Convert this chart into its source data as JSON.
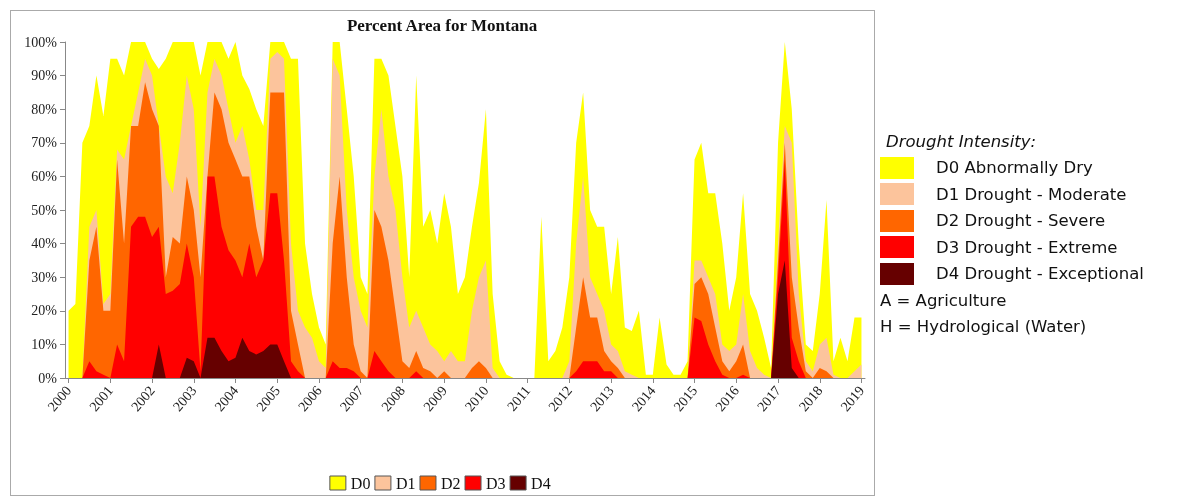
{
  "chart_data": {
    "type": "area",
    "title": "Percent Area for Montana",
    "x": [
      "2000-01",
      "2000-03",
      "2000-05",
      "2000-07",
      "2000-09",
      "2000-11",
      "2001-01",
      "2001-03",
      "2001-05",
      "2001-07",
      "2001-09",
      "2001-11",
      "2002-01",
      "2002-03",
      "2002-05",
      "2002-07",
      "2002-09",
      "2002-11",
      "2003-01",
      "2003-03",
      "2003-05",
      "2003-07",
      "2003-09",
      "2003-11",
      "2004-01",
      "2004-03",
      "2004-05",
      "2004-07",
      "2004-09",
      "2004-11",
      "2005-01",
      "2005-03",
      "2005-05",
      "2005-07",
      "2005-09",
      "2005-11",
      "2006-01",
      "2006-03",
      "2006-05",
      "2006-07",
      "2006-09",
      "2006-11",
      "2007-01",
      "2007-03",
      "2007-05",
      "2007-07",
      "2007-09",
      "2007-11",
      "2008-01",
      "2008-03",
      "2008-05",
      "2008-07",
      "2008-09",
      "2008-11",
      "2009-01",
      "2009-03",
      "2009-05",
      "2009-07",
      "2009-09",
      "2009-11",
      "2010-01",
      "2010-03",
      "2010-05",
      "2010-07",
      "2010-09",
      "2010-11",
      "2011-01",
      "2011-03",
      "2011-05",
      "2011-07",
      "2011-09",
      "2011-11",
      "2012-01",
      "2012-03",
      "2012-05",
      "2012-07",
      "2012-09",
      "2012-11",
      "2013-01",
      "2013-03",
      "2013-05",
      "2013-07",
      "2013-09",
      "2013-11",
      "2014-01",
      "2014-03",
      "2014-05",
      "2014-07",
      "2014-09",
      "2014-11",
      "2015-01",
      "2015-03",
      "2015-05",
      "2015-07",
      "2015-09",
      "2015-11",
      "2016-01",
      "2016-03",
      "2016-05",
      "2016-07",
      "2016-09",
      "2016-11",
      "2017-01",
      "2017-03",
      "2017-05",
      "2017-07",
      "2017-09",
      "2017-11",
      "2018-01",
      "2018-03",
      "2018-05",
      "2018-07",
      "2018-09",
      "2018-11",
      "2019-01"
    ],
    "series": [
      {
        "name": "D0",
        "color": "#ffff00",
        "values": [
          20,
          22,
          70,
          75,
          90,
          78,
          95,
          95,
          90,
          100,
          100,
          100,
          95,
          92,
          95,
          100,
          100,
          100,
          100,
          90,
          100,
          100,
          100,
          95,
          100,
          90,
          86,
          80,
          75,
          100,
          100,
          100,
          95,
          95,
          40,
          25,
          15,
          10,
          100,
          100,
          80,
          60,
          30,
          25,
          95,
          95,
          90,
          75,
          60,
          30,
          90,
          45,
          50,
          40,
          55,
          45,
          25,
          30,
          45,
          58,
          80,
          25,
          5,
          1,
          0,
          0,
          0,
          0,
          48,
          5,
          8,
          15,
          30,
          70,
          85,
          50,
          45,
          45,
          25,
          42,
          15,
          14,
          20,
          1,
          1,
          18,
          4,
          1,
          1,
          5,
          65,
          70,
          55,
          55,
          40,
          20,
          30,
          55,
          25,
          20,
          12,
          3,
          70,
          100,
          80,
          40,
          10,
          8,
          25,
          53,
          5,
          12,
          5,
          18,
          18
        ]
      },
      {
        "name": "D1",
        "color": "#fcc49c",
        "values": [
          0,
          0,
          0,
          45,
          50,
          22,
          25,
          68,
          65,
          75,
          85,
          95,
          90,
          75,
          60,
          55,
          70,
          90,
          80,
          45,
          85,
          95,
          90,
          80,
          70,
          75,
          65,
          50,
          50,
          95,
          97,
          95,
          40,
          20,
          15,
          12,
          5,
          3,
          95,
          90,
          50,
          30,
          20,
          15,
          60,
          80,
          60,
          50,
          30,
          15,
          20,
          15,
          10,
          8,
          5,
          8,
          5,
          5,
          20,
          30,
          35,
          3,
          0,
          0,
          0,
          0,
          0,
          0,
          0,
          0,
          0,
          0,
          5,
          40,
          60,
          30,
          25,
          20,
          10,
          8,
          2,
          1,
          0,
          0,
          0,
          0,
          0,
          0,
          0,
          0,
          35,
          35,
          30,
          25,
          10,
          8,
          10,
          25,
          8,
          3,
          1,
          0,
          40,
          75,
          70,
          25,
          5,
          2,
          10,
          12,
          1,
          0,
          0,
          2,
          4
        ]
      },
      {
        "name": "D2",
        "color": "#ff6600",
        "values": [
          0,
          0,
          0,
          35,
          45,
          20,
          20,
          65,
          40,
          75,
          75,
          88,
          80,
          75,
          30,
          42,
          40,
          60,
          50,
          30,
          60,
          85,
          80,
          70,
          65,
          60,
          60,
          45,
          35,
          85,
          85,
          85,
          20,
          10,
          0,
          0,
          0,
          0,
          40,
          60,
          30,
          10,
          2,
          0,
          50,
          45,
          35,
          20,
          5,
          3,
          8,
          3,
          2,
          0,
          2,
          0,
          0,
          0,
          3,
          5,
          3,
          0,
          0,
          0,
          0,
          0,
          0,
          0,
          0,
          0,
          0,
          0,
          0,
          15,
          30,
          18,
          18,
          8,
          5,
          3,
          0,
          0,
          0,
          0,
          0,
          0,
          0,
          0,
          0,
          0,
          28,
          30,
          25,
          15,
          5,
          2,
          5,
          10,
          0,
          0,
          0,
          0,
          35,
          70,
          30,
          15,
          2,
          0,
          3,
          2,
          0,
          0,
          0,
          0,
          0
        ]
      },
      {
        "name": "D3",
        "color": "#ff0000",
        "values": [
          0,
          0,
          0,
          5,
          2,
          1,
          0,
          10,
          5,
          45,
          48,
          48,
          42,
          45,
          25,
          26,
          28,
          40,
          30,
          2,
          60,
          60,
          45,
          38,
          35,
          30,
          40,
          30,
          35,
          55,
          55,
          35,
          5,
          2,
          0,
          0,
          0,
          0,
          5,
          3,
          3,
          2,
          0,
          0,
          8,
          5,
          2,
          0,
          0,
          0,
          2,
          0,
          0,
          0,
          0,
          0,
          0,
          0,
          0,
          0,
          0,
          0,
          0,
          0,
          0,
          0,
          0,
          0,
          0,
          0,
          0,
          0,
          0,
          2,
          5,
          5,
          5,
          2,
          2,
          0,
          0,
          0,
          0,
          0,
          0,
          0,
          0,
          0,
          0,
          0,
          18,
          17,
          10,
          5,
          1,
          0,
          0,
          1,
          0,
          0,
          0,
          0,
          30,
          65,
          12,
          5,
          0,
          0,
          0,
          0,
          0,
          0,
          0,
          0,
          0
        ]
      },
      {
        "name": "D4",
        "color": "#660000",
        "values": [
          0,
          0,
          0,
          0,
          0,
          0,
          0,
          0,
          0,
          0,
          0,
          0,
          0,
          10,
          0,
          0,
          0,
          6,
          5,
          0,
          12,
          12,
          8,
          5,
          6,
          12,
          8,
          7,
          8,
          10,
          10,
          5,
          0,
          0,
          0,
          0,
          0,
          0,
          0,
          0,
          0,
          0,
          0,
          0,
          0,
          0,
          0,
          0,
          0,
          0,
          0,
          0,
          0,
          0,
          0,
          0,
          0,
          0,
          0,
          0,
          0,
          0,
          0,
          0,
          0,
          0,
          0,
          0,
          0,
          0,
          0,
          0,
          0,
          0,
          0,
          0,
          0,
          0,
          0,
          0,
          0,
          0,
          0,
          0,
          0,
          0,
          0,
          0,
          0,
          0,
          0,
          0,
          0,
          0,
          0,
          0,
          0,
          0,
          0,
          0,
          0,
          0,
          25,
          35,
          3,
          0,
          0,
          0,
          0,
          0,
          0,
          0,
          0,
          0,
          0
        ]
      }
    ],
    "xlim": [
      "1999-12-01",
      "2019-02-01"
    ],
    "xticks": [
      "2000",
      "2001",
      "2002",
      "2003",
      "2004",
      "2005",
      "2006",
      "2007",
      "2008",
      "2009",
      "2010",
      "2011",
      "2012",
      "2013",
      "2014",
      "2015",
      "2016",
      "2017",
      "2018",
      "2019"
    ],
    "ylim": [
      0,
      100
    ],
    "yticks": [
      {
        "value": 0,
        "label": "0%"
      },
      {
        "value": 10,
        "label": "10%"
      },
      {
        "value": 20,
        "label": "20%"
      },
      {
        "value": 30,
        "label": "30%"
      },
      {
        "value": 40,
        "label": "40%"
      },
      {
        "value": 50,
        "label": "50%"
      },
      {
        "value": 60,
        "label": "60%"
      },
      {
        "value": 70,
        "label": "70%"
      },
      {
        "value": 80,
        "label": "80%"
      },
      {
        "value": 90,
        "label": "90%"
      },
      {
        "value": 100,
        "label": "100%"
      }
    ],
    "grid": false,
    "legend": "bottom",
    "marker": "none",
    "annotations": [
      "Drought Intensity:",
      "D0 Abnormally Dry",
      "D1 Drought - Moderate",
      "D2 Drought - Severe",
      "D3 Drought - Extreme",
      "D4 Drought - Exceptional",
      "A = Agriculture",
      "H = Hydrological (Water)"
    ]
  }
}
